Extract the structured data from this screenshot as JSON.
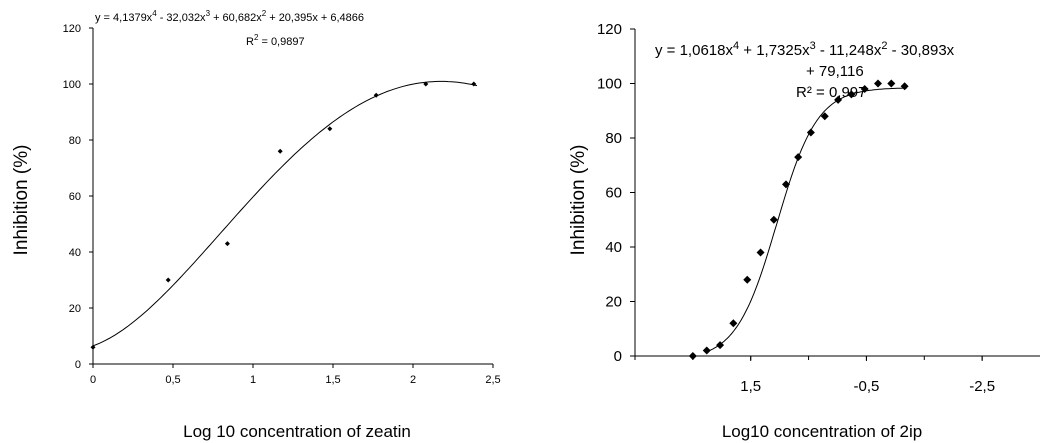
{
  "chart_data": [
    {
      "type": "scatter",
      "title": "",
      "xlabel": "Log 10 concentration of zeatin",
      "ylabel": "Inhibition (%)",
      "xlim": [
        0,
        2.5
      ],
      "ylim": [
        0,
        120
      ],
      "x_ticks": [
        "0",
        "0,5",
        "1",
        "1,5",
        "2",
        "2,5"
      ],
      "y_ticks": [
        "0",
        "20",
        "40",
        "60",
        "80",
        "100",
        "120"
      ],
      "equation": {
        "pre": "y = 4,1379x",
        "e1": "4",
        "m1": " - 32,032x",
        "e2": "3",
        "m2": " + 60,682x",
        "e3": "2",
        "post": " + 20,395x + 6,4866"
      },
      "r2": {
        "pre": "R",
        "sup": "2",
        "post": " = 0,9897"
      },
      "trendline": {
        "type": "polynomial",
        "coef": [
          4.1379,
          -32.032,
          60.682,
          20.395,
          6.4866
        ]
      },
      "series": [
        {
          "x": [
            0,
            0.47,
            0.84,
            1.17,
            1.48,
            1.77,
            2.08,
            2.38
          ],
          "y": [
            6,
            30,
            43,
            76,
            84,
            96,
            100,
            100
          ]
        }
      ]
    },
    {
      "type": "scatter",
      "title": "",
      "xlabel": "Log10 concentration of 2ip",
      "ylabel": "Inhibition (%)",
      "xlim": [
        3.5,
        -3.5
      ],
      "ylim": [
        0,
        120
      ],
      "x_ticks": [
        "1,5",
        "-0,5",
        "-2,5"
      ],
      "y_ticks": [
        "0",
        "20",
        "40",
        "60",
        "80",
        "100",
        "120"
      ],
      "equation_line1": {
        "pre": "y = 1,0618x",
        "e1": "4",
        "m1": " + 1,7325x",
        "e2": "3",
        "m2": " - 11,248x",
        "e3": "2",
        "post": " - 30,893x"
      },
      "equation_line2": "+ 79,116",
      "r2": {
        "pre": "R",
        "sup": "²",
        "post": " = 0,997"
      },
      "trendline": {
        "type": "polynomial"
      },
      "series": [
        {
          "x": [
            2.5,
            2.26,
            2.03,
            1.8,
            1.56,
            1.33,
            1.1,
            0.89,
            0.68,
            0.46,
            0.22,
            -0.01,
            -0.24,
            -0.47,
            -0.7,
            -0.93,
            -1.16
          ],
          "y": [
            0,
            2,
            4,
            12,
            28,
            38,
            50,
            63,
            73,
            82,
            88,
            94,
            96,
            98,
            100,
            100,
            99
          ]
        }
      ]
    }
  ]
}
